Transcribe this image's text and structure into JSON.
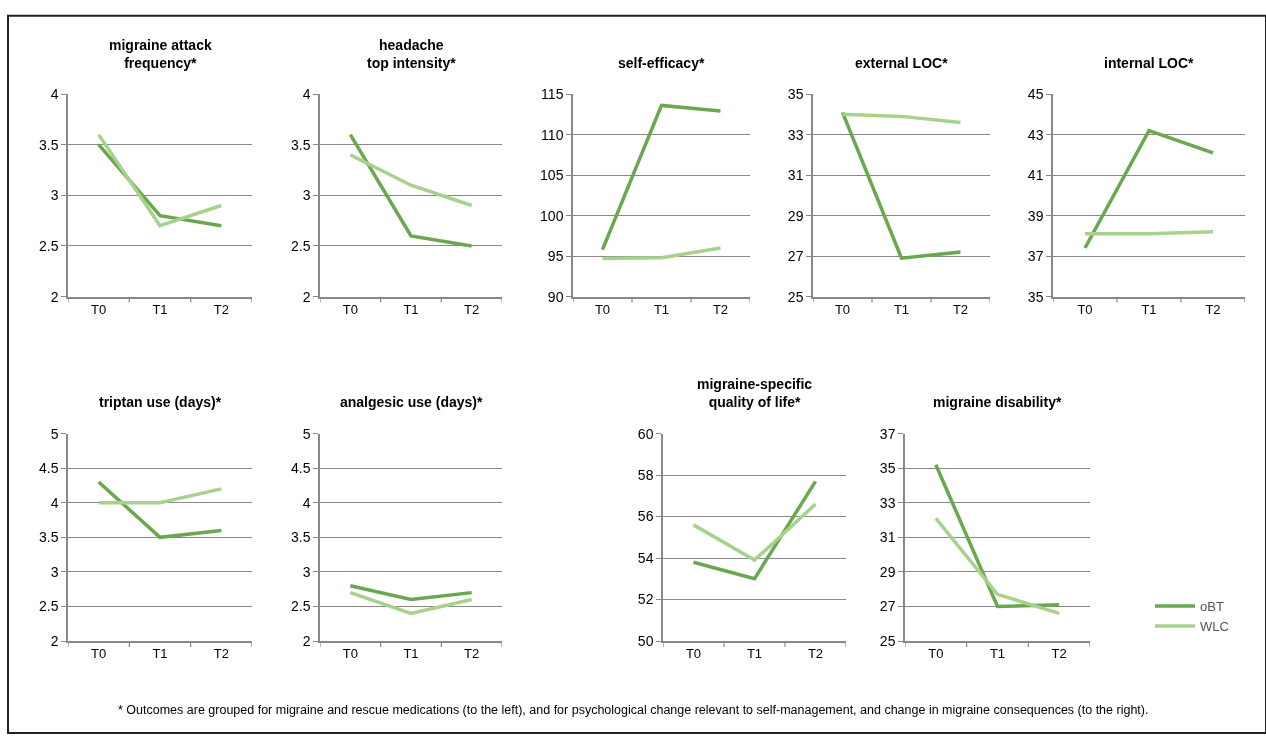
{
  "chart_data": [
    {
      "type": "line",
      "title": "migraine attack\nfrequency*",
      "categories": [
        "T0",
        "T1",
        "T2"
      ],
      "ylim": [
        2,
        4
      ],
      "yticks": [
        2,
        2.5,
        3,
        3.5,
        4
      ],
      "grid": "y",
      "series": [
        {
          "color": "#6aa84f",
          "values": [
            3.5,
            2.8,
            2.7
          ]
        },
        {
          "color": "#a9d18e",
          "values": [
            3.6,
            2.7,
            2.9
          ]
        }
      ]
    },
    {
      "type": "line",
      "title": "headache\ntop intensity*",
      "categories": [
        "T0",
        "T1",
        "T2"
      ],
      "ylim": [
        2,
        4
      ],
      "yticks": [
        2,
        2.5,
        3,
        3.5,
        4
      ],
      "grid": "y",
      "series": [
        {
          "color": "#6aa84f",
          "values": [
            3.6,
            2.6,
            2.5
          ]
        },
        {
          "color": "#a9d18e",
          "values": [
            3.4,
            3.1,
            2.9
          ]
        }
      ]
    },
    {
      "type": "line",
      "title": "self-efficacy*",
      "categories": [
        "T0",
        "T1",
        "T2"
      ],
      "ylim": [
        90,
        115
      ],
      "yticks": [
        90,
        95,
        100,
        105,
        110,
        115
      ],
      "grid": "y",
      "series": [
        {
          "color": "#6aa84f",
          "values": [
            95.8,
            113.6,
            112.9
          ]
        },
        {
          "color": "#a9d18e",
          "values": [
            94.7,
            94.8,
            96
          ]
        }
      ]
    },
    {
      "type": "line",
      "title": "external LOC*",
      "categories": [
        "T0",
        "T1",
        "T2"
      ],
      "ylim": [
        25,
        35
      ],
      "yticks": [
        25,
        27,
        29,
        31,
        33,
        35
      ],
      "grid": "y",
      "series": [
        {
          "color": "#6aa84f",
          "values": [
            34.1,
            26.9,
            27.2
          ]
        },
        {
          "color": "#a9d18e",
          "values": [
            34,
            33.9,
            33.6
          ]
        }
      ]
    },
    {
      "type": "line",
      "title": "internal LOC*",
      "categories": [
        "T0",
        "T1",
        "T2"
      ],
      "ylim": [
        35,
        45
      ],
      "yticks": [
        35,
        37,
        39,
        41,
        43,
        45
      ],
      "grid": "y",
      "series": [
        {
          "color": "#6aa84f",
          "values": [
            37.4,
            43.2,
            42.1
          ]
        },
        {
          "color": "#a9d18e",
          "values": [
            38.1,
            38.1,
            38.2
          ]
        }
      ]
    },
    {
      "type": "line",
      "title": "triptan use (days)*",
      "categories": [
        "T0",
        "T1",
        "T2"
      ],
      "ylim": [
        2,
        5
      ],
      "yticks": [
        2,
        2.5,
        3,
        3.5,
        4,
        4.5,
        5
      ],
      "grid": "y",
      "series": [
        {
          "color": "#6aa84f",
          "values": [
            4.3,
            3.5,
            3.6
          ]
        },
        {
          "color": "#a9d18e",
          "values": [
            4,
            4,
            4.2
          ]
        }
      ]
    },
    {
      "type": "line",
      "title": "analgesic use (days)*",
      "categories": [
        "T0",
        "T1",
        "T2"
      ],
      "ylim": [
        2,
        5
      ],
      "yticks": [
        2,
        2.5,
        3,
        3.5,
        4,
        4.5,
        5
      ],
      "grid": "y",
      "series": [
        {
          "color": "#6aa84f",
          "values": [
            2.8,
            2.6,
            2.7
          ]
        },
        {
          "color": "#a9d18e",
          "values": [
            2.7,
            2.4,
            2.6
          ]
        }
      ]
    },
    {
      "type": "line",
      "title": "migraine-specific\nquality of life*",
      "categories": [
        "T0",
        "T1",
        "T2"
      ],
      "ylim": [
        50,
        60
      ],
      "yticks": [
        50,
        52,
        54,
        56,
        58,
        60
      ],
      "grid": "y",
      "series": [
        {
          "color": "#6aa84f",
          "values": [
            53.8,
            53,
            57.7
          ]
        },
        {
          "color": "#a9d18e",
          "values": [
            55.6,
            53.9,
            56.6
          ]
        }
      ]
    },
    {
      "type": "line",
      "title": "migraine disability*",
      "categories": [
        "T0",
        "T1",
        "T2"
      ],
      "ylim": [
        25,
        37
      ],
      "yticks": [
        25,
        27,
        29,
        31,
        33,
        35,
        37
      ],
      "grid": "y",
      "legend": "bottom right",
      "annotations": [
        "* Outcomes are grouped for migraine and rescue medications (to the left), and for psychological change relevant to self-management, and change in migraine consequences (to the right)."
      ],
      "series": [
        {
          "name": "oBT",
          "color": "#6aa84f",
          "values": [
            35.2,
            27,
            27.1
          ]
        },
        {
          "name": "WLC",
          "color": "#a9d18e",
          "values": [
            32.1,
            27.7,
            26.6
          ]
        }
      ]
    }
  ]
}
